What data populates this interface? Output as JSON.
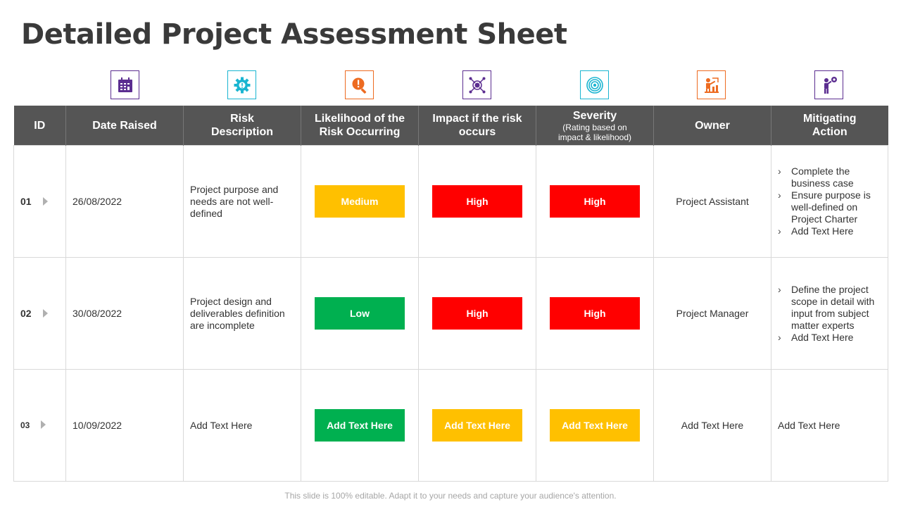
{
  "title": "Detailed Project Assessment Sheet",
  "header_icons": [
    {
      "name": "calendar-icon",
      "color": "#5b2d90"
    },
    {
      "name": "gear-icon",
      "color": "#1ab5d1"
    },
    {
      "name": "risk-search-icon",
      "color": "#ed6b21"
    },
    {
      "name": "impact-network-icon",
      "color": "#5b2d90"
    },
    {
      "name": "target-icon",
      "color": "#1ab5d1"
    },
    {
      "name": "presenter-icon",
      "color": "#ed6b21"
    },
    {
      "name": "person-gear-icon",
      "color": "#5b2d90"
    }
  ],
  "columns": {
    "id": "ID",
    "date": "Date Raised",
    "risk_line1": "Risk",
    "risk_line2": "Description",
    "likelihood_line1": "Likelihood of the",
    "likelihood_line2": "Risk Occurring",
    "impact_line1": "Impact if the risk",
    "impact_line2": "occurs",
    "severity": "Severity",
    "severity_sub_line1": "(Rating based on",
    "severity_sub_line2": "impact & likelihood)",
    "owner": "Owner",
    "mitigating_line1": "Mitigating",
    "mitigating_line2": "Action"
  },
  "colors": {
    "header_bg": "#555555",
    "medium": "#ffc000",
    "high": "#ff0000",
    "low": "#00b050",
    "green": "#00b050",
    "yellow": "#ffc000"
  },
  "rows": [
    {
      "id": "01",
      "date": "26/08/2022",
      "risk": "Project purpose and needs are not well-defined",
      "likelihood": "Medium",
      "impact": "High",
      "severity": "High",
      "owner": "Project Assistant",
      "actions": [
        "Complete the business case",
        "Ensure purpose is well-defined on Project Charter",
        "Add Text Here"
      ]
    },
    {
      "id": "02",
      "date": "30/08/2022",
      "risk": "Project design and deliverables definition are incomplete",
      "likelihood": "Low",
      "impact": "High",
      "severity": "High",
      "owner": "Project Manager",
      "actions": [
        "Define the project scope in detail with input from subject matter experts",
        "Add Text Here"
      ]
    },
    {
      "id": "03",
      "date": "10/09/2022",
      "risk": "Add Text Here",
      "likelihood": "Add Text Here",
      "impact": "Add Text Here",
      "severity": "Add Text Here",
      "owner": "Add Text Here",
      "action_text": "Add Text Here"
    }
  ],
  "footer": "This slide is 100% editable. Adapt it to your needs and capture your audience's attention."
}
